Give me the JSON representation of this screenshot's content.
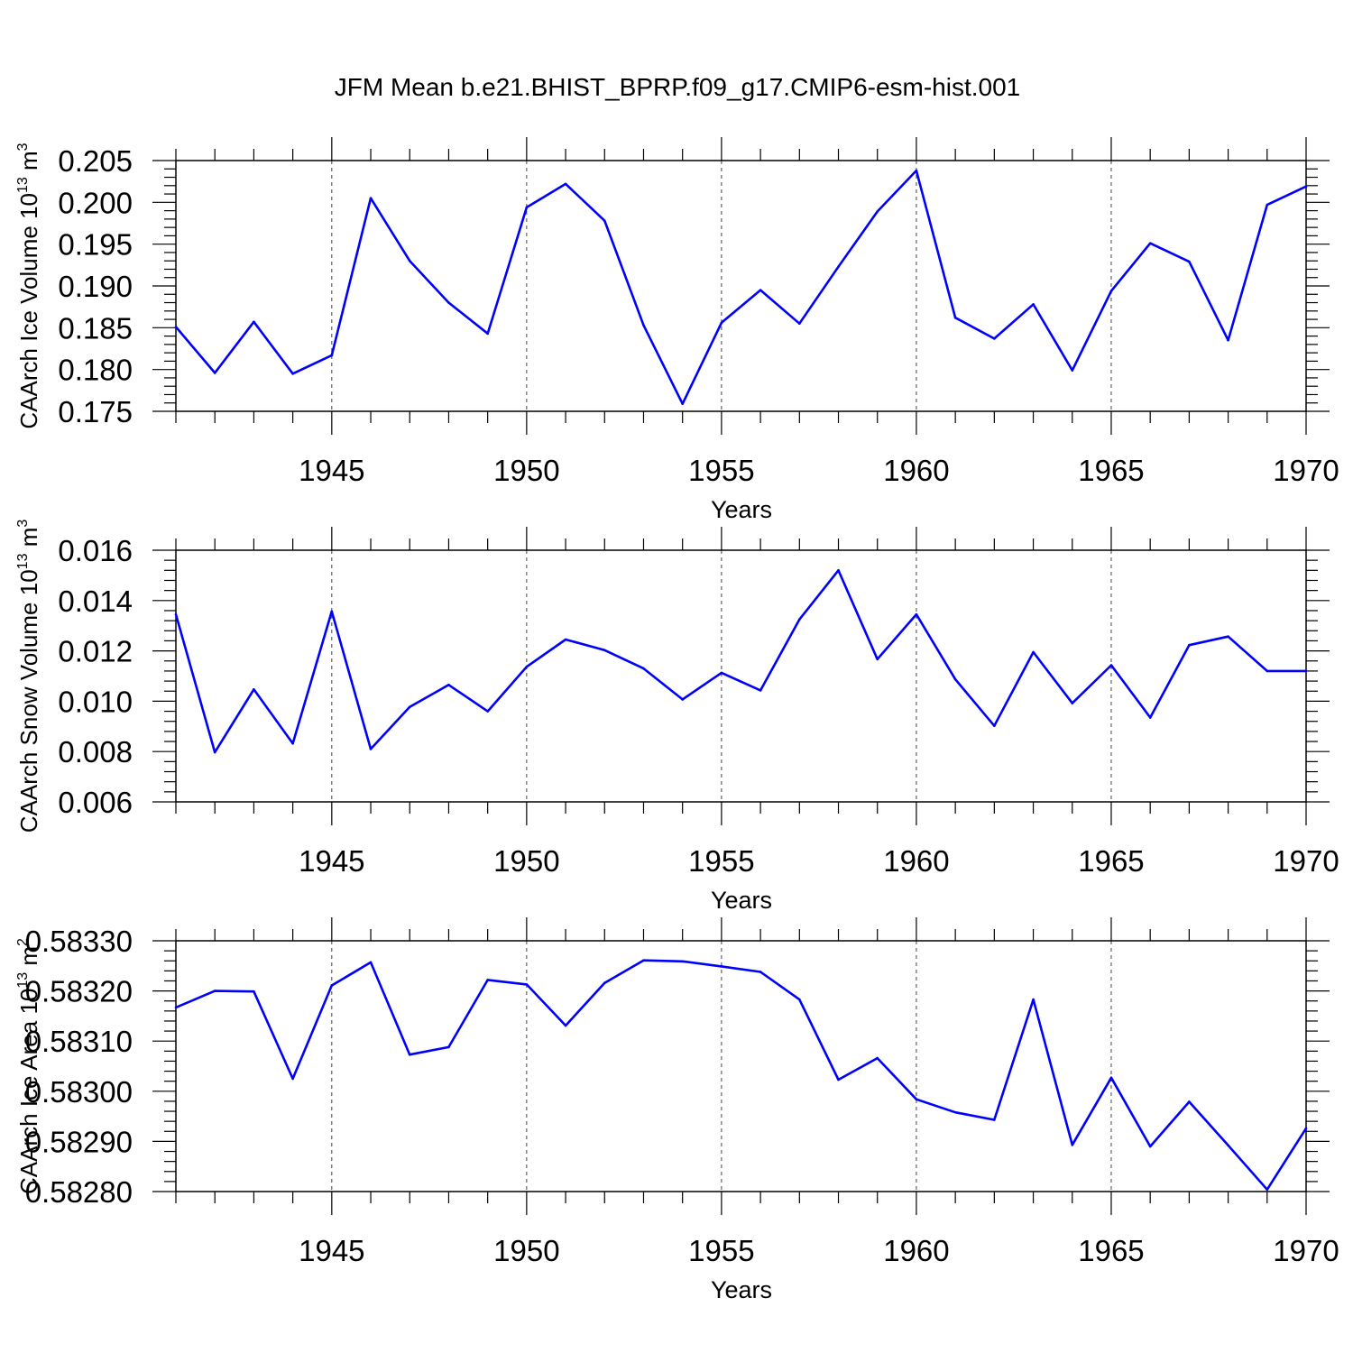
{
  "title": "JFM Mean b.e21.BHIST_BPRP.f09_g17.CMIP6-esm-hist.001",
  "line_color": "#0000ff",
  "chart_data": [
    {
      "type": "line",
      "ylabel": {
        "prefix": "CAArch Ice Volume 10",
        "exp": "13",
        "unit": " m",
        "unit_exp": "3"
      },
      "xlabel": "Years",
      "xlim": [
        1941,
        1970
      ],
      "ylim": [
        0.175,
        0.205
      ],
      "x_ticks": [
        1945,
        1950,
        1955,
        1960,
        1965,
        1970
      ],
      "y_ticks": [
        "0.175",
        "0.180",
        "0.185",
        "0.190",
        "0.195",
        "0.200",
        "0.205"
      ],
      "grid": "vertical-dashed",
      "x": [
        1941,
        1942,
        1943,
        1944,
        1945,
        1946,
        1947,
        1948,
        1949,
        1950,
        1951,
        1952,
        1953,
        1954,
        1955,
        1956,
        1957,
        1958,
        1959,
        1960,
        1961,
        1962,
        1963,
        1964,
        1965,
        1966,
        1967,
        1968,
        1969,
        1970
      ],
      "y": [
        0.1851,
        0.1796,
        0.1857,
        0.1795,
        0.1817,
        0.2005,
        0.193,
        0.188,
        0.1843,
        0.1994,
        0.2022,
        0.1978,
        0.1853,
        0.1759,
        0.1856,
        0.1895,
        0.1855,
        0.1923,
        0.1989,
        0.2038,
        0.1862,
        0.1837,
        0.1878,
        0.1799,
        0.1894,
        0.1951,
        0.1929,
        0.1835,
        0.1997,
        0.2019
      ]
    },
    {
      "type": "line",
      "ylabel": {
        "prefix": "CAArch Snow Volume 10",
        "exp": "13",
        "unit": " m",
        "unit_exp": "3"
      },
      "xlabel": "Years",
      "xlim": [
        1941,
        1970
      ],
      "ylim": [
        0.006,
        0.016
      ],
      "x_ticks": [
        1945,
        1950,
        1955,
        1960,
        1965,
        1970
      ],
      "y_ticks": [
        "0.006",
        "0.008",
        "0.010",
        "0.012",
        "0.014",
        "0.016"
      ],
      "grid": "vertical-dashed",
      "x": [
        1941,
        1942,
        1943,
        1944,
        1945,
        1946,
        1947,
        1948,
        1949,
        1950,
        1951,
        1952,
        1953,
        1954,
        1955,
        1956,
        1957,
        1958,
        1959,
        1960,
        1961,
        1962,
        1963,
        1964,
        1965,
        1966,
        1967,
        1968,
        1969,
        1970
      ],
      "y": [
        0.01345,
        0.00797,
        0.01047,
        0.00832,
        0.01357,
        0.0081,
        0.00977,
        0.01065,
        0.0096,
        0.01137,
        0.01245,
        0.01203,
        0.0113,
        0.01007,
        0.01113,
        0.01043,
        0.01325,
        0.0152,
        0.01167,
        0.01345,
        0.01087,
        0.00902,
        0.01195,
        0.00992,
        0.01143,
        0.00935,
        0.01223,
        0.01257,
        0.0112,
        0.0112
      ]
    },
    {
      "type": "line",
      "ylabel": {
        "prefix": "CAArch Ice Area 10",
        "exp": "13",
        "unit": " m",
        "unit_exp": "2"
      },
      "xlabel": "Years",
      "xlim": [
        1941,
        1970
      ],
      "ylim": [
        0.5828,
        0.5833
      ],
      "x_ticks": [
        1945,
        1950,
        1955,
        1960,
        1965,
        1970
      ],
      "y_ticks": [
        "0.58280",
        "0.58290",
        "0.58300",
        "0.58310",
        "0.58320",
        "0.58330"
      ],
      "grid": "vertical-dashed",
      "x": [
        1941,
        1942,
        1943,
        1944,
        1945,
        1946,
        1947,
        1948,
        1949,
        1950,
        1951,
        1952,
        1953,
        1954,
        1955,
        1956,
        1957,
        1958,
        1959,
        1960,
        1961,
        1962,
        1963,
        1964,
        1965,
        1966,
        1967,
        1968,
        1969,
        1970
      ],
      "y": [
        0.583167,
        0.5832,
        0.583199,
        0.583025,
        0.583211,
        0.583257,
        0.583073,
        0.583088,
        0.583222,
        0.583213,
        0.583131,
        0.583216,
        0.583261,
        0.583259,
        0.583249,
        0.583238,
        0.583183,
        0.583023,
        0.583066,
        0.582984,
        0.582958,
        0.582943,
        0.583183,
        0.582893,
        0.583027,
        0.58289,
        0.582979,
        0.582892,
        0.582804,
        0.582926
      ]
    }
  ]
}
